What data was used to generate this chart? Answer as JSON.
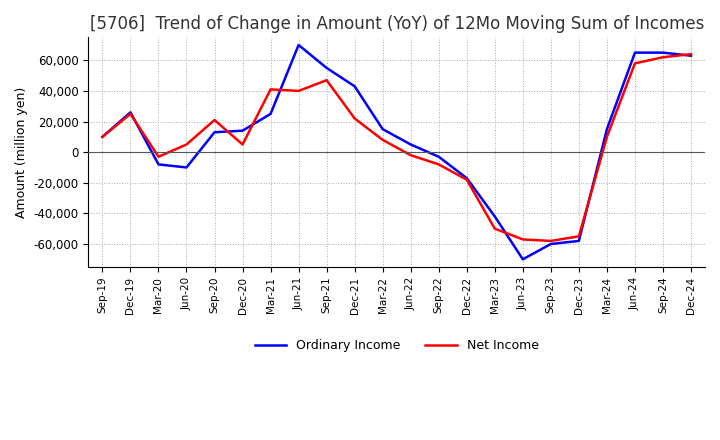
{
  "title": "[5706]  Trend of Change in Amount (YoY) of 12Mo Moving Sum of Incomes",
  "ylabel": "Amount (million yen)",
  "x_labels": [
    "Sep-19",
    "Dec-19",
    "Mar-20",
    "Jun-20",
    "Sep-20",
    "Dec-20",
    "Mar-21",
    "Jun-21",
    "Sep-21",
    "Dec-21",
    "Mar-22",
    "Jun-22",
    "Sep-22",
    "Dec-22",
    "Mar-23",
    "Jun-23",
    "Sep-23",
    "Dec-23",
    "Mar-24",
    "Jun-24",
    "Sep-24",
    "Dec-24"
  ],
  "ordinary_income": [
    10000,
    26000,
    -8000,
    -10000,
    13000,
    14000,
    25000,
    70000,
    55000,
    43000,
    15000,
    5000,
    -3000,
    -17000,
    -42000,
    -70000,
    -60000,
    -58000,
    15000,
    65000,
    65000,
    63000
  ],
  "net_income": [
    10000,
    25000,
    -3000,
    5000,
    21000,
    5000,
    41000,
    40000,
    47000,
    22000,
    8000,
    -2000,
    -8000,
    -18000,
    -50000,
    -57000,
    -58000,
    -55000,
    10000,
    58000,
    62000,
    64000
  ],
  "ordinary_income_color": "#0000ff",
  "net_income_color": "#ff0000",
  "ylim": [
    -75000,
    75000
  ],
  "yticks": [
    -60000,
    -40000,
    -20000,
    0,
    20000,
    40000,
    60000
  ],
  "background_color": "#ffffff",
  "grid_color": "#aaaaaa",
  "title_fontsize": 12,
  "legend_labels": [
    "Ordinary Income",
    "Net Income"
  ]
}
